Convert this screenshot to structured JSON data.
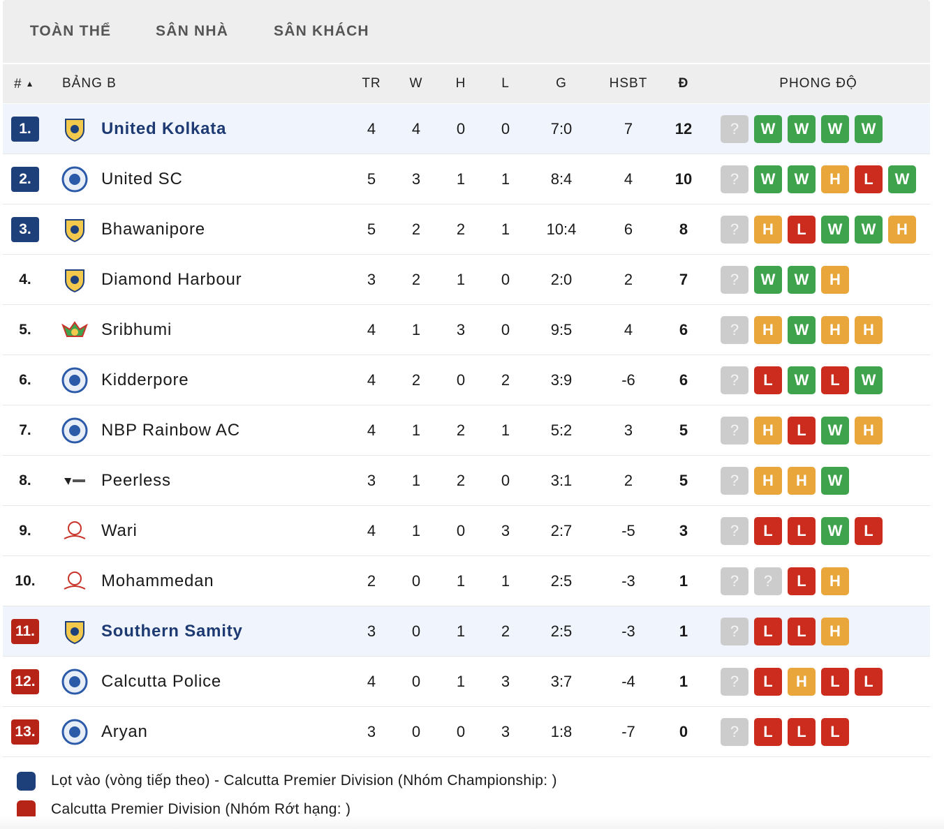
{
  "tabs": [
    {
      "label": "TOÀN THỂ",
      "active": true
    },
    {
      "label": "SÂN NHÀ",
      "active": false
    },
    {
      "label": "SÂN KHÁCH",
      "active": false
    }
  ],
  "headers": {
    "rank": "#",
    "group": "BẢNG B",
    "played": "TR",
    "won": "W",
    "drawn": "H",
    "lost": "L",
    "goals": "G",
    "goal_diff": "HSBT",
    "points": "Đ",
    "form": "PHONG ĐỘ"
  },
  "colors": {
    "promotion": "#1d3f7a",
    "relegation": "#b52417",
    "win": "#3fa34d",
    "draw": "#e9a73b",
    "loss": "#cb2c1e",
    "unknown": "#cccccc"
  },
  "rows": [
    {
      "rank": "1.",
      "zone": "blue",
      "highlight": true,
      "team": "United Kolkata",
      "tr": "4",
      "w": "4",
      "h": "0",
      "l": "0",
      "g": "7:0",
      "hsbt": "7",
      "pts": "12",
      "form": [
        "?",
        "W",
        "W",
        "W",
        "W"
      ],
      "logo": "shield-crest-icon"
    },
    {
      "rank": "2.",
      "zone": "blue",
      "highlight": false,
      "team": "United SC",
      "tr": "5",
      "w": "3",
      "h": "1",
      "l": "1",
      "g": "8:4",
      "hsbt": "4",
      "pts": "10",
      "form": [
        "?",
        "W",
        "W",
        "H",
        "L",
        "W"
      ],
      "logo": "round-badge-icon"
    },
    {
      "rank": "3.",
      "zone": "blue",
      "highlight": false,
      "team": "Bhawanipore",
      "tr": "5",
      "w": "2",
      "h": "2",
      "l": "1",
      "g": "10:4",
      "hsbt": "6",
      "pts": "8",
      "form": [
        "?",
        "H",
        "L",
        "W",
        "W",
        "H"
      ],
      "logo": "shield-crest-icon"
    },
    {
      "rank": "4.",
      "zone": "",
      "highlight": false,
      "team": "Diamond Harbour",
      "tr": "3",
      "w": "2",
      "h": "1",
      "l": "0",
      "g": "2:0",
      "hsbt": "2",
      "pts": "7",
      "form": [
        "?",
        "W",
        "W",
        "H"
      ],
      "logo": "shield-crest-icon"
    },
    {
      "rank": "5.",
      "zone": "",
      "highlight": false,
      "team": "Sribhumi",
      "tr": "4",
      "w": "1",
      "h": "3",
      "l": "0",
      "g": "9:5",
      "hsbt": "4",
      "pts": "6",
      "form": [
        "?",
        "H",
        "W",
        "H",
        "H"
      ],
      "logo": "winged-badge-icon"
    },
    {
      "rank": "6.",
      "zone": "",
      "highlight": false,
      "team": "Kidderpore",
      "tr": "4",
      "w": "2",
      "h": "0",
      "l": "2",
      "g": "3:9",
      "hsbt": "-6",
      "pts": "6",
      "form": [
        "?",
        "L",
        "W",
        "L",
        "W"
      ],
      "logo": "round-badge-icon"
    },
    {
      "rank": "7.",
      "zone": "",
      "highlight": false,
      "team": "NBP Rainbow AC",
      "tr": "4",
      "w": "1",
      "h": "2",
      "l": "1",
      "g": "5:2",
      "hsbt": "3",
      "pts": "5",
      "form": [
        "?",
        "H",
        "L",
        "W",
        "H"
      ],
      "logo": "round-badge-icon"
    },
    {
      "rank": "8.",
      "zone": "",
      "highlight": false,
      "team": "Peerless",
      "tr": "3",
      "w": "1",
      "h": "2",
      "l": "0",
      "g": "3:1",
      "hsbt": "2",
      "pts": "5",
      "form": [
        "?",
        "H",
        "H",
        "W"
      ],
      "logo": "wordmark-logo-icon"
    },
    {
      "rank": "9.",
      "zone": "",
      "highlight": false,
      "team": "Wari",
      "tr": "4",
      "w": "1",
      "h": "0",
      "l": "3",
      "g": "2:7",
      "hsbt": "-5",
      "pts": "3",
      "form": [
        "?",
        "L",
        "L",
        "W",
        "L"
      ],
      "logo": "emblem-icon"
    },
    {
      "rank": "10.",
      "zone": "",
      "highlight": false,
      "team": "Mohammedan",
      "tr": "2",
      "w": "0",
      "h": "1",
      "l": "1",
      "g": "2:5",
      "hsbt": "-3",
      "pts": "1",
      "form": [
        "?",
        "?",
        "L",
        "H"
      ],
      "logo": "emblem-icon"
    },
    {
      "rank": "11.",
      "zone": "red",
      "highlight": true,
      "team": "Southern Samity",
      "tr": "3",
      "w": "0",
      "h": "1",
      "l": "2",
      "g": "2:5",
      "hsbt": "-3",
      "pts": "1",
      "form": [
        "?",
        "L",
        "L",
        "H"
      ],
      "logo": "shield-crest-icon"
    },
    {
      "rank": "12.",
      "zone": "red",
      "highlight": false,
      "team": "Calcutta Police",
      "tr": "4",
      "w": "0",
      "h": "1",
      "l": "3",
      "g": "3:7",
      "hsbt": "-4",
      "pts": "1",
      "form": [
        "?",
        "L",
        "H",
        "L",
        "L"
      ],
      "logo": "round-badge-icon"
    },
    {
      "rank": "13.",
      "zone": "red",
      "highlight": false,
      "team": "Aryan",
      "tr": "3",
      "w": "0",
      "h": "0",
      "l": "3",
      "g": "1:8",
      "hsbt": "-7",
      "pts": "0",
      "form": [
        "?",
        "L",
        "L",
        "L"
      ],
      "logo": "round-badge-icon"
    }
  ],
  "legend": [
    {
      "color": "#1d3f7a",
      "text": "Lọt vào (vòng tiếp theo) - Calcutta Premier Division (Nhóm Championship: )"
    },
    {
      "color": "#b52417",
      "text": "Calcutta Premier Division (Nhóm Rớt hạng: )"
    }
  ]
}
